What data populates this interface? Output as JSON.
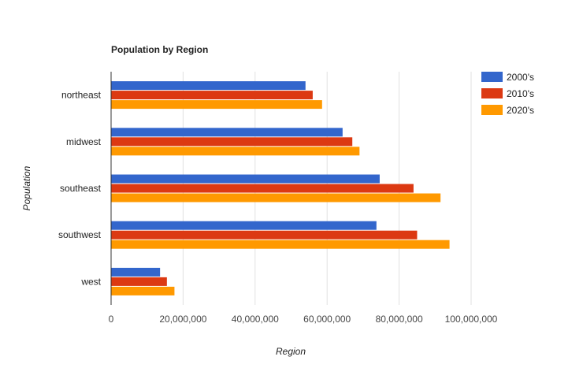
{
  "chart_data": {
    "type": "bar",
    "orientation": "horizontal",
    "title": "Population by Region",
    "xlabel": "Region",
    "ylabel": "Population",
    "categories": [
      "northeast",
      "midwest",
      "southeast",
      "southwest",
      "west"
    ],
    "series": [
      {
        "name": "2000's",
        "color": "#3366cc",
        "values": [
          54000000,
          64300000,
          74600000,
          73700000,
          13600000
        ]
      },
      {
        "name": "2010's",
        "color": "#dc3912",
        "values": [
          56000000,
          67000000,
          84000000,
          85000000,
          15500000
        ]
      },
      {
        "name": "2020's",
        "color": "#ff9900",
        "values": [
          58600000,
          69000000,
          91500000,
          94000000,
          17600000
        ]
      }
    ],
    "x_ticks": [
      "0",
      "20,000,000",
      "40,000,000",
      "60,000,000",
      "80,000,000",
      "100,000,000"
    ],
    "xlim": [
      0,
      100000000
    ],
    "grid": true,
    "legend_position": "right"
  }
}
